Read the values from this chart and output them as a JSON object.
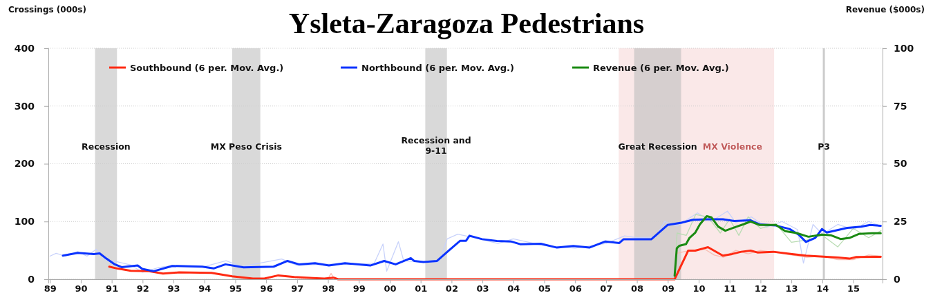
{
  "chart_data": {
    "type": "line",
    "title": "Ysleta-Zaragoza Pedestrians",
    "ylabel": "Crossings (000s)",
    "y2label": "Revenue ($000s)",
    "xlim": [
      1988.95,
      2015.95
    ],
    "xticks": [
      {
        "value": 1989,
        "label": "89"
      },
      {
        "value": 1990,
        "label": "90"
      },
      {
        "value": 1991,
        "label": "91"
      },
      {
        "value": 1992,
        "label": "92"
      },
      {
        "value": 1993,
        "label": "93"
      },
      {
        "value": 1994,
        "label": "94"
      },
      {
        "value": 1995,
        "label": "95"
      },
      {
        "value": 1996,
        "label": "96"
      },
      {
        "value": 1997,
        "label": "97"
      },
      {
        "value": 1998,
        "label": "98"
      },
      {
        "value": 1999,
        "label": "99"
      },
      {
        "value": 2000,
        "label": "00"
      },
      {
        "value": 2001,
        "label": "01"
      },
      {
        "value": 2002,
        "label": "02"
      },
      {
        "value": 2003,
        "label": "03"
      },
      {
        "value": 2004,
        "label": "04"
      },
      {
        "value": 2005,
        "label": "05"
      },
      {
        "value": 2006,
        "label": "06"
      },
      {
        "value": 2007,
        "label": "07"
      },
      {
        "value": 2008,
        "label": "08"
      },
      {
        "value": 2009,
        "label": "09"
      },
      {
        "value": 2010,
        "label": "10"
      },
      {
        "value": 2011,
        "label": "11"
      },
      {
        "value": 2012,
        "label": "12"
      },
      {
        "value": 2013,
        "label": "13"
      },
      {
        "value": 2014,
        "label": "14"
      },
      {
        "value": 2015,
        "label": "15"
      }
    ],
    "ylim": [
      0,
      400
    ],
    "yticks": [
      0,
      100,
      200,
      300,
      400
    ],
    "y2lim": [
      0,
      100
    ],
    "y2ticks": [
      0,
      25,
      50,
      75,
      100
    ],
    "grid": "y",
    "legend": "top",
    "bands": [
      {
        "axis": "x",
        "from": 1990.46,
        "to": 1991.17,
        "label": "Recession",
        "color": "#d9d9d9"
      },
      {
        "axis": "x",
        "from": 1994.9,
        "to": 1995.81,
        "label": "MX Peso Crisis",
        "color": "#d9d9d9"
      },
      {
        "axis": "x",
        "from": 2001.15,
        "to": 2001.85,
        "label": "Recession and\n9-11",
        "color": "#d9d9d9"
      },
      {
        "axis": "x",
        "from": 2007.41,
        "to": 2012.44,
        "label": "MX Violence",
        "color": "#fae8e8"
      },
      {
        "axis": "x",
        "from": 2007.91,
        "to": 2009.43,
        "label": "Great Recession",
        "color": "#d6cfcf"
      }
    ],
    "ref_lines": [
      {
        "axis": "x",
        "value": 2014.05,
        "label": "P3",
        "color": "#cccccc"
      }
    ],
    "series": [
      {
        "color": "#c8d2fb",
        "x": [
          1989.0,
          1989.2,
          1989.5,
          1989.9,
          1990.2,
          1990.5,
          1990.8,
          1991.2,
          1991.6,
          1992.0,
          1992.5,
          1993.0,
          1994.0,
          1994.7,
          1995.2,
          1996.5,
          1997.0,
          1998.0,
          1999.0,
          1999.5,
          1999.78,
          1999.9,
          2000.28,
          2000.45,
          2001.0,
          2001.6,
          2001.86,
          2002.2,
          2002.9,
          2003.5,
          2004.0,
          2005.0,
          2006.0,
          2007.0,
          2007.6,
          2008.0,
          2008.6,
          2008.9,
          2009.3,
          2009.96,
          2010.4,
          2010.93,
          2011.2,
          2011.7,
          2012.2,
          2012.7,
          2013.2,
          2013.39,
          2013.7,
          2014.0,
          2014.5,
          2015.0,
          2015.5,
          2015.9
        ],
        "values": [
          40,
          45,
          40,
          48,
          40,
          52,
          34,
          30,
          25,
          12,
          20,
          24,
          22,
          32,
          22,
          35,
          24,
          26,
          26,
          28,
          61,
          14,
          65,
          32,
          30,
          30,
          70,
          78,
          70,
          62,
          70,
          58,
          54,
          62,
          75,
          72,
          73,
          100,
          92,
          115,
          100,
          118,
          98,
          108,
          90,
          100,
          86,
          28,
          95,
          78,
          95,
          86,
          100,
          92
        ]
      },
      {
        "color": "#b9dcb3",
        "axis": "y2",
        "x": [
          2009.22,
          2009.3,
          2009.6,
          2009.9,
          2010.3,
          2010.7,
          2011.0,
          2011.3,
          2011.6,
          2012.0,
          2012.5,
          2013.0,
          2013.5,
          2014.0,
          2014.5,
          2015.0,
          2015.5,
          2015.9
        ],
        "values": [
          1.5,
          20,
          19,
          28,
          27,
          20,
          26,
          19,
          27,
          22,
          24,
          16,
          17,
          19,
          14,
          22,
          18,
          21
        ]
      },
      {
        "color": "#f9bcb1",
        "x": [
          1998.0,
          1998.1,
          1998.2,
          2009.2,
          2009.3,
          2009.7,
          2010.2,
          2010.5,
          2010.8,
          2011.2,
          2011.6,
          2012.0,
          2012.5,
          2013.0,
          2013.5,
          2014.0,
          2014.5,
          2015.0,
          2015.5,
          2015.9
        ],
        "values": [
          1,
          10,
          1,
          null,
          45,
          50,
          52,
          42,
          38,
          50,
          44,
          50,
          46,
          42,
          38,
          40,
          34,
          34,
          42,
          40
        ]
      },
      {
        "name": "Southbound (6 per. Mov. Avg.)",
        "color": "#ff2a12",
        "x": [
          1990.92,
          1991.17,
          1991.62,
          1992.21,
          1992.66,
          1993.18,
          1994.23,
          1994.9,
          1995.57,
          1995.94,
          1996.39,
          1996.91,
          1997.51,
          1997.88,
          1998.18,
          1998.33,
          2009.22,
          2009.66,
          2009.89,
          2010.3,
          2010.78,
          2011.08,
          2011.38,
          2011.68,
          2011.9,
          2012.42,
          2013.02,
          2013.47,
          2014.51,
          2014.88,
          2015.1,
          2015.89
        ],
        "values": [
          21.8,
          18.7,
          14.7,
          13.9,
          9.9,
          11.9,
          11.1,
          5.2,
          1.2,
          1.2,
          6.7,
          4,
          2,
          1.2,
          2.8,
          0,
          0,
          49.6,
          49.6,
          55.6,
          40.9,
          43.7,
          47.6,
          49.6,
          46.4,
          47.6,
          43.7,
          40.9,
          37.7,
          35.7,
          38.5,
          38.9
        ]
      },
      {
        "name": "Northbound (6 per. Mov. Avg.)",
        "color": "#0a33ff",
        "x": [
          1989.42,
          1989.9,
          1990.42,
          1990.61,
          1990.83,
          1991.1,
          1991.32,
          1991.84,
          1991.99,
          1992.36,
          1992.96,
          1993.93,
          1994.3,
          1994.68,
          1995.27,
          1996.24,
          1996.69,
          1997.06,
          1997.58,
          1998.03,
          1998.55,
          1999.37,
          1999.82,
          2000.19,
          2000.68,
          2000.79,
          2001.09,
          2001.53,
          2001.91,
          2002.28,
          2002.47,
          2002.58,
          2002.99,
          2003.47,
          2003.92,
          2004.22,
          2004.89,
          2005.41,
          2005.94,
          2006.46,
          2006.98,
          2007.43,
          2007.57,
          2008.47,
          2008.99,
          2009.44,
          2009.81,
          2010.33,
          2010.78,
          2011.15,
          2011.68,
          2011.97,
          2012.5,
          2012.94,
          2013.24,
          2013.47,
          2013.77,
          2013.99,
          2014.14,
          2014.81,
          2015.26,
          2015.55,
          2015.89
        ],
        "values": [
          40.9,
          45.6,
          43.7,
          44.8,
          35.7,
          25.8,
          21,
          23.8,
          17.9,
          13.9,
          23,
          21.8,
          18.7,
          25.8,
          20.6,
          21.8,
          31.7,
          25.8,
          27.8,
          23.8,
          27.8,
          23.8,
          31.7,
          25.8,
          36.5,
          31.7,
          29.8,
          31.7,
          49.6,
          66.7,
          66.7,
          75.4,
          69.4,
          66.3,
          65.5,
          60.7,
          61.5,
          54.8,
          57.5,
          54.8,
          65.5,
          62.7,
          69.4,
          69.4,
          94,
          98,
          103,
          104,
          104,
          101,
          102,
          95,
          93,
          87,
          77,
          64.6,
          71.4,
          87,
          81,
          89,
          91,
          94,
          92.5
        ]
      },
      {
        "name": "Revenue (6 per. Mov. Avg.)",
        "color": "#1a8a12",
        "axis": "y2",
        "x": [
          2009.22,
          2009.29,
          2009.37,
          2009.59,
          2009.7,
          2009.89,
          2010.04,
          2010.26,
          2010.41,
          2010.63,
          2010.86,
          2011.23,
          2011.45,
          2011.68,
          2011.97,
          2012.5,
          2012.8,
          2013.17,
          2013.55,
          2013.99,
          2014.29,
          2014.59,
          2014.88,
          2015.18,
          2015.62,
          2015.89
        ],
        "values": [
          1.5,
          13.4,
          14.5,
          15.2,
          17.9,
          20.2,
          23.8,
          27.3,
          26.8,
          22.8,
          21,
          22.8,
          23.8,
          25,
          23.5,
          23.5,
          20.8,
          20,
          18.4,
          19.3,
          19,
          17.4,
          17.9,
          19.6,
          19.9,
          19.9
        ]
      }
    ]
  }
}
